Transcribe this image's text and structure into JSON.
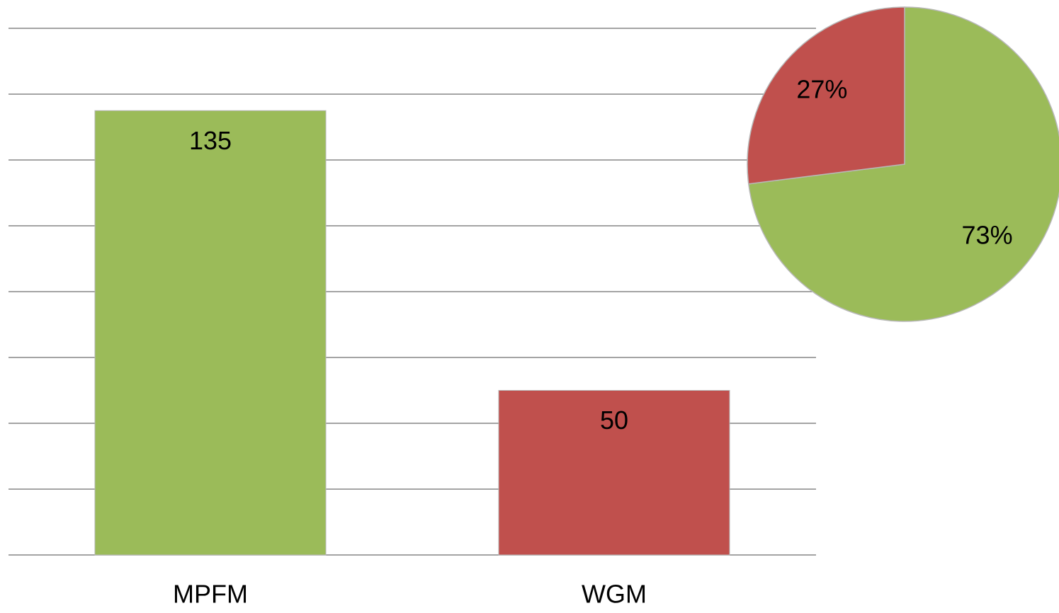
{
  "chart_data": [
    {
      "type": "bar",
      "categories": [
        "MPFM",
        "WGM"
      ],
      "values": [
        135,
        50
      ],
      "colors": [
        "#9bbb59",
        "#c0504d"
      ],
      "ylim": [
        0,
        160
      ],
      "yticks": [
        0,
        20,
        40,
        60,
        80,
        100,
        120,
        140,
        160
      ],
      "grid": true
    },
    {
      "type": "pie",
      "values": [
        73,
        27
      ],
      "value_labels": [
        "73%",
        "27%"
      ],
      "colors": [
        "#9bbb59",
        "#c0504d"
      ]
    }
  ]
}
